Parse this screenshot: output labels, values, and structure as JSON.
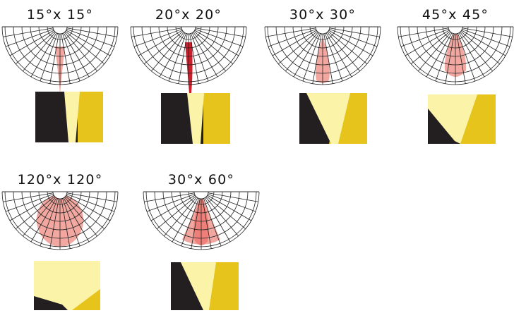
{
  "colors": {
    "grid": "#222222",
    "background": "#ffffff",
    "beam_light": "#f2a8a0",
    "beam_medium": "#ee8079",
    "beam_strong": "#cc1f2b",
    "swatch_dark": "#231f20",
    "swatch_gold": "#e6c41c",
    "swatch_light": "#fbf4a8"
  },
  "diagrams": [
    {
      "label": "15°x 15°",
      "beam": {
        "type": "narrow",
        "color": "beam_light"
      }
    },
    {
      "label": "20°x 20°",
      "beam": {
        "type": "narrow",
        "color": "beam_strong"
      }
    },
    {
      "label": "30°x 30°",
      "beam": {
        "type": "medium",
        "color": "beam_light"
      }
    },
    {
      "label": "45°x 45°",
      "beam": {
        "type": "medium",
        "color": "beam_light"
      }
    },
    {
      "label": "120°x 120°",
      "beam": {
        "type": "wide",
        "color": "beam_light"
      }
    },
    {
      "label": "30°x 60°",
      "beam": {
        "type": "oval",
        "color": "beam_medium"
      }
    }
  ]
}
